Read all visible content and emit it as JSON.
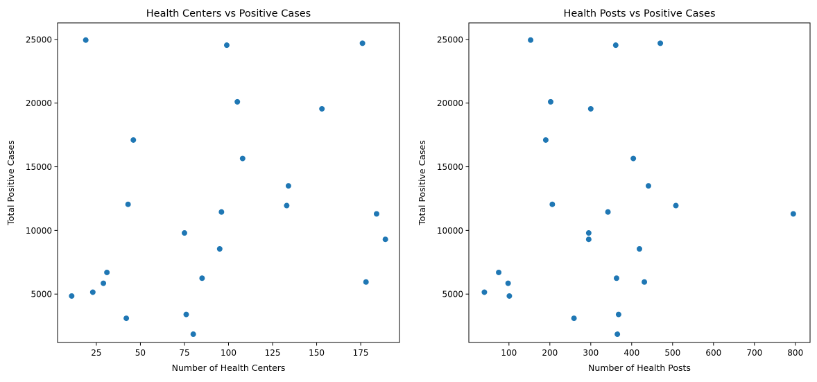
{
  "chart_data": [
    {
      "type": "scatter",
      "title": "Health Centers vs Positive Cases",
      "xlabel": "Number of Health Centers",
      "ylabel": "Total Positive Cases",
      "xlim": [
        3,
        197
      ],
      "ylim": [
        1200,
        26300
      ],
      "xticks": [
        25,
        50,
        75,
        100,
        125,
        150,
        175
      ],
      "yticks": [
        5000,
        10000,
        15000,
        20000,
        25000
      ],
      "color": "#1f77b4",
      "grid": false,
      "points": [
        {
          "x": 19,
          "y": 24950
        },
        {
          "x": 99,
          "y": 24550
        },
        {
          "x": 176,
          "y": 24700
        },
        {
          "x": 105,
          "y": 20100
        },
        {
          "x": 153,
          "y": 19550
        },
        {
          "x": 46,
          "y": 17100
        },
        {
          "x": 108,
          "y": 15650
        },
        {
          "x": 134,
          "y": 13500
        },
        {
          "x": 43,
          "y": 12050
        },
        {
          "x": 133,
          "y": 11950
        },
        {
          "x": 96,
          "y": 11450
        },
        {
          "x": 184,
          "y": 11300
        },
        {
          "x": 75,
          "y": 9800
        },
        {
          "x": 189,
          "y": 9300
        },
        {
          "x": 95,
          "y": 8550
        },
        {
          "x": 31,
          "y": 6700
        },
        {
          "x": 85,
          "y": 6250
        },
        {
          "x": 29,
          "y": 5850
        },
        {
          "x": 178,
          "y": 5950
        },
        {
          "x": 23,
          "y": 5150
        },
        {
          "x": 11,
          "y": 4850
        },
        {
          "x": 76,
          "y": 3400
        },
        {
          "x": 42,
          "y": 3100
        },
        {
          "x": 80,
          "y": 1850
        }
      ]
    },
    {
      "type": "scatter",
      "title": "Health Posts vs Positive Cases",
      "xlabel": "Number of Health Posts",
      "ylabel": "Total Positive Cases",
      "xlim": [
        2,
        836
      ],
      "ylim": [
        1200,
        26300
      ],
      "xticks": [
        100,
        200,
        300,
        400,
        500,
        600,
        700,
        800
      ],
      "yticks": [
        5000,
        10000,
        15000,
        20000,
        25000
      ],
      "color": "#1f77b4",
      "grid": false,
      "points": [
        {
          "x": 153,
          "y": 24950
        },
        {
          "x": 361,
          "y": 24550
        },
        {
          "x": 470,
          "y": 24700
        },
        {
          "x": 202,
          "y": 20100
        },
        {
          "x": 300,
          "y": 19550
        },
        {
          "x": 190,
          "y": 17100
        },
        {
          "x": 404,
          "y": 15650
        },
        {
          "x": 441,
          "y": 13500
        },
        {
          "x": 206,
          "y": 12050
        },
        {
          "x": 508,
          "y": 11950
        },
        {
          "x": 342,
          "y": 11450
        },
        {
          "x": 795,
          "y": 11300
        },
        {
          "x": 295,
          "y": 9800
        },
        {
          "x": 295,
          "y": 9300
        },
        {
          "x": 419,
          "y": 8550
        },
        {
          "x": 75,
          "y": 6700
        },
        {
          "x": 363,
          "y": 6250
        },
        {
          "x": 98,
          "y": 5850
        },
        {
          "x": 431,
          "y": 5950
        },
        {
          "x": 40,
          "y": 5150
        },
        {
          "x": 101,
          "y": 4850
        },
        {
          "x": 368,
          "y": 3400
        },
        {
          "x": 259,
          "y": 3100
        },
        {
          "x": 365,
          "y": 1850
        }
      ]
    }
  ]
}
